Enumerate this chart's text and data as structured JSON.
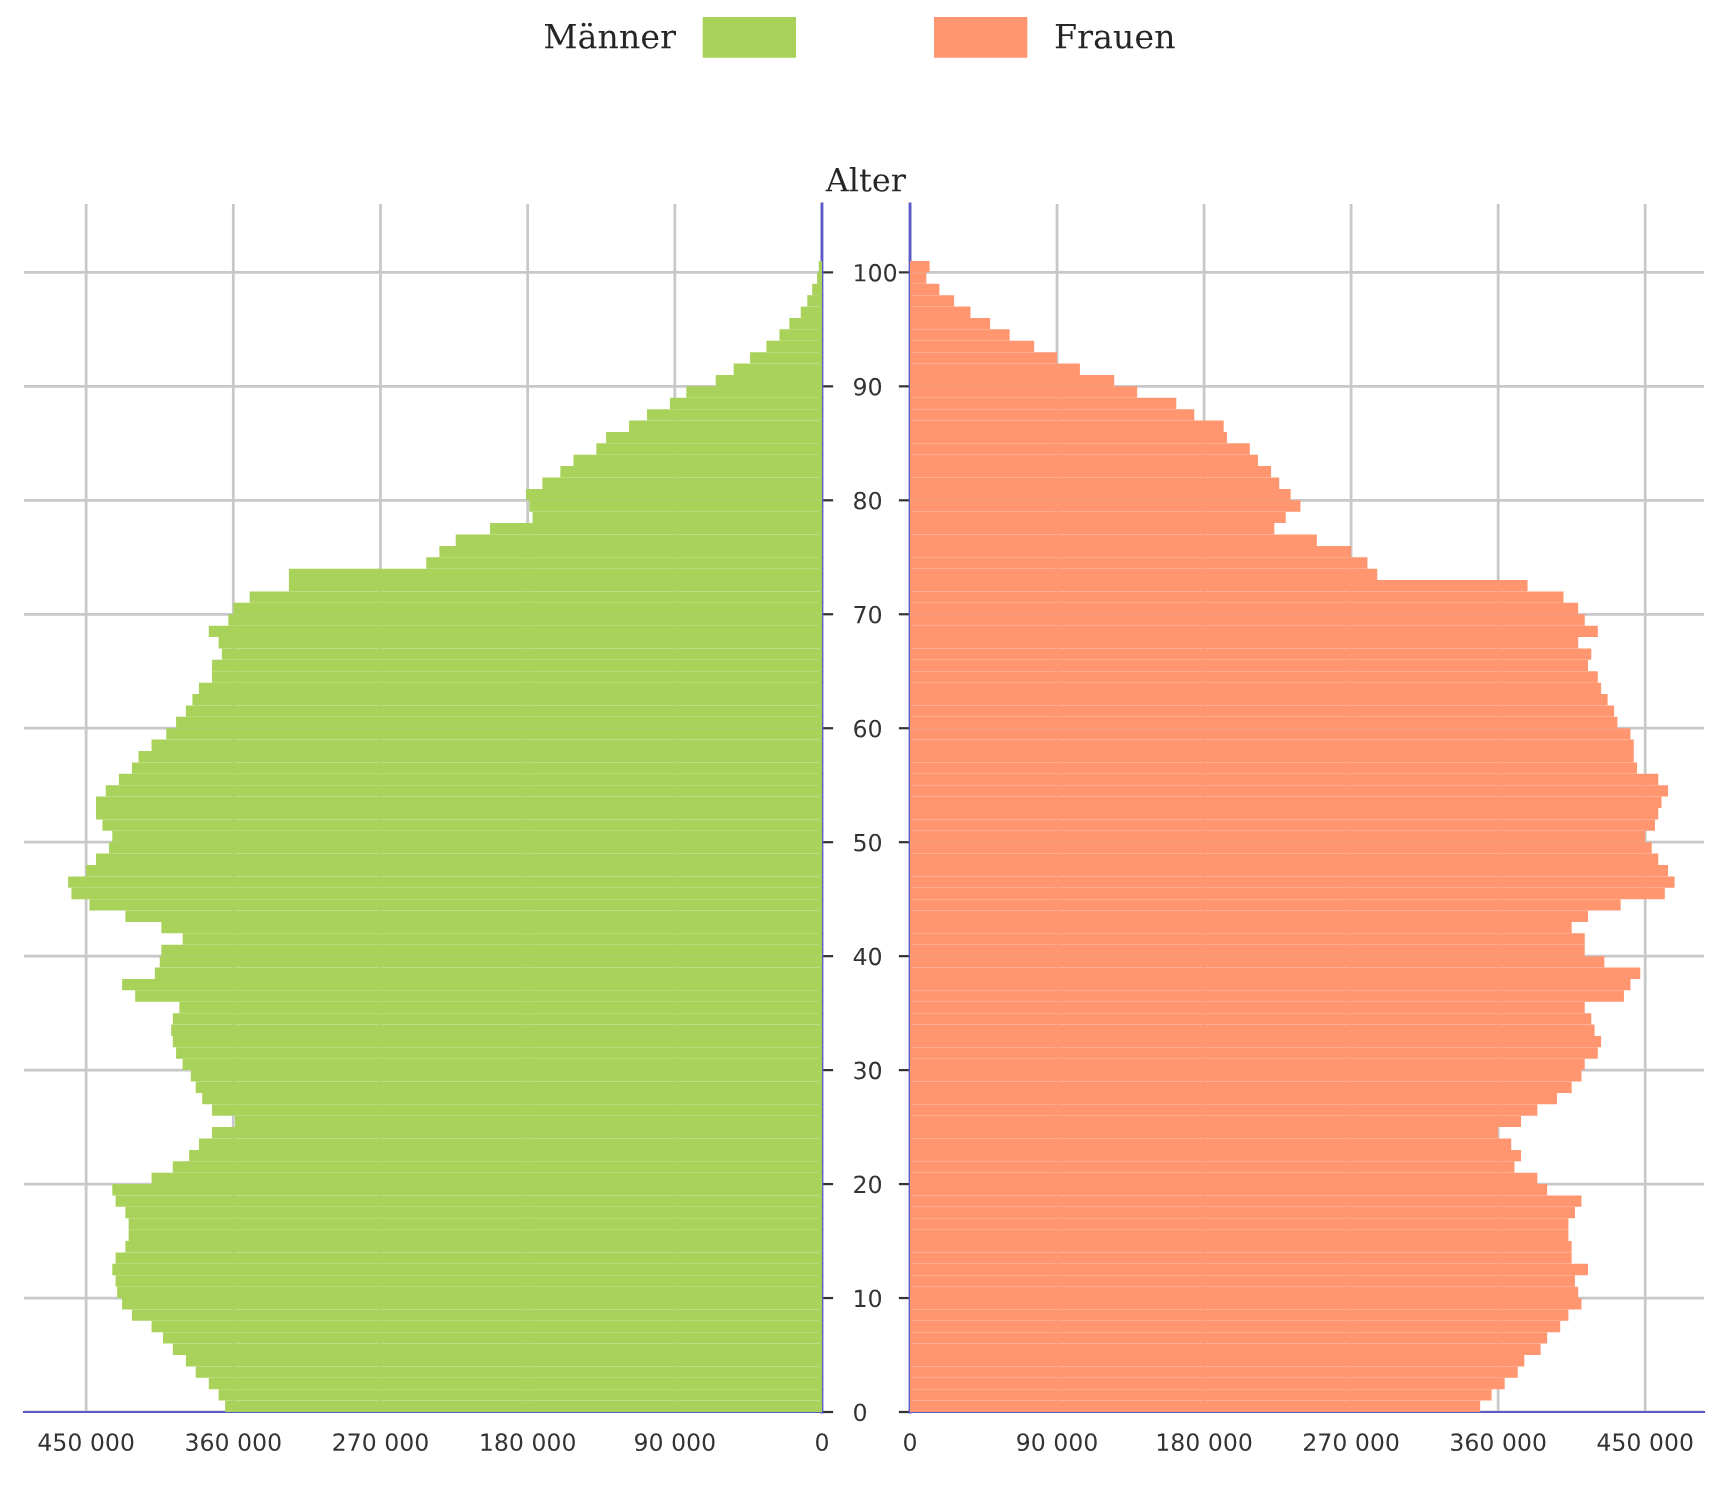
{
  "chart_data": [
    {
      "type": "bar",
      "orientation": "horizontal",
      "ylabel": "Alter",
      "legend": "top",
      "grid": true,
      "x": [
        0,
        1,
        2,
        3,
        4,
        5,
        6,
        7,
        8,
        9,
        10,
        11,
        12,
        13,
        14,
        15,
        16,
        17,
        18,
        19,
        20,
        21,
        22,
        23,
        24,
        25,
        26,
        27,
        28,
        29,
        30,
        31,
        32,
        33,
        34,
        35,
        36,
        37,
        38,
        39,
        40,
        41,
        42,
        43,
        44,
        45,
        46,
        47,
        48,
        49,
        50,
        51,
        52,
        53,
        54,
        55,
        56,
        57,
        58,
        59,
        60,
        61,
        62,
        63,
        64,
        65,
        66,
        67,
        68,
        69,
        70,
        71,
        72,
        73,
        74,
        75,
        76,
        77,
        78,
        79,
        80,
        81,
        82,
        83,
        84,
        85,
        86,
        87,
        88,
        89,
        90,
        91,
        92,
        93,
        94,
        95,
        96,
        97,
        98,
        99,
        100
      ],
      "series": [
        {
          "name": "Männer",
          "color": "#a8d25a",
          "values": [
            365000,
            369000,
            375000,
            383000,
            389000,
            397000,
            403000,
            410000,
            422000,
            428000,
            431000,
            432000,
            434000,
            432000,
            426000,
            424000,
            424000,
            426000,
            432000,
            434000,
            410000,
            397000,
            387000,
            381000,
            373000,
            359000,
            373000,
            379000,
            383000,
            386000,
            391000,
            395000,
            397000,
            398000,
            397000,
            393000,
            420000,
            428000,
            408000,
            405000,
            404000,
            391000,
            404000,
            426000,
            448000,
            459000,
            461000,
            450000,
            444000,
            436000,
            434000,
            440000,
            444000,
            444000,
            438000,
            430000,
            422000,
            418000,
            410000,
            401000,
            395000,
            389000,
            385000,
            381000,
            373000,
            373000,
            367000,
            369000,
            375000,
            363000,
            360000,
            350000,
            326000,
            326000,
            242000,
            234000,
            224000,
            203000,
            177000,
            179000,
            181000,
            171000,
            160000,
            152000,
            138000,
            132000,
            118000,
            107000,
            93000,
            83000,
            65000,
            54000,
            44000,
            34000,
            26000,
            20000,
            13000,
            9000,
            6000,
            3000,
            2000
          ]
        }
      ],
      "xlim": [
        488000,
        0
      ],
      "xticks": [
        {
          "value": 450000,
          "label": "450 000"
        },
        {
          "value": 360000,
          "label": "360 000"
        },
        {
          "value": 270000,
          "label": "270 000"
        },
        {
          "value": 180000,
          "label": "180 000"
        },
        {
          "value": 90000,
          "label": "90 000"
        },
        0
      ],
      "ylim": [
        0,
        106
      ],
      "yticks": [
        0,
        10,
        20,
        30,
        40,
        50,
        60,
        70,
        80,
        90,
        100
      ]
    },
    {
      "type": "bar",
      "orientation": "horizontal",
      "legend": "top",
      "grid": true,
      "tick_labels": "x",
      "x": [
        0,
        1,
        2,
        3,
        4,
        5,
        6,
        7,
        8,
        9,
        10,
        11,
        12,
        13,
        14,
        15,
        16,
        17,
        18,
        19,
        20,
        21,
        22,
        23,
        24,
        25,
        26,
        27,
        28,
        29,
        30,
        31,
        32,
        33,
        34,
        35,
        36,
        37,
        38,
        39,
        40,
        41,
        42,
        43,
        44,
        45,
        46,
        47,
        48,
        49,
        50,
        51,
        52,
        53,
        54,
        55,
        56,
        57,
        58,
        59,
        60,
        61,
        62,
        63,
        64,
        65,
        66,
        67,
        68,
        69,
        70,
        71,
        72,
        73,
        74,
        75,
        76,
        77,
        78,
        79,
        80,
        81,
        82,
        83,
        84,
        85,
        86,
        87,
        88,
        89,
        90,
        91,
        92,
        93,
        94,
        95,
        96,
        97,
        98,
        99,
        100
      ],
      "series": [
        {
          "name": "Frauen",
          "color": "#ff9670",
          "values": [
            349000,
            356000,
            364000,
            372000,
            376000,
            386000,
            390000,
            398000,
            403000,
            411000,
            409000,
            407000,
            415000,
            405000,
            405000,
            403000,
            403000,
            407000,
            411000,
            390000,
            384000,
            370000,
            374000,
            368000,
            360000,
            374000,
            384000,
            396000,
            405000,
            411000,
            413000,
            421000,
            423000,
            419000,
            417000,
            413000,
            437000,
            441000,
            447000,
            425000,
            413000,
            413000,
            405000,
            415000,
            435000,
            462000,
            468000,
            464000,
            458000,
            454000,
            450000,
            456000,
            458000,
            460000,
            464000,
            458000,
            445000,
            443000,
            443000,
            441000,
            433000,
            431000,
            427000,
            423000,
            421000,
            415000,
            417000,
            409000,
            421000,
            413000,
            409000,
            400000,
            378000,
            286000,
            280000,
            270000,
            249000,
            223000,
            230000,
            239000,
            233000,
            226000,
            221000,
            213000,
            208000,
            194000,
            192000,
            174000,
            163000,
            139000,
            125000,
            104000,
            90000,
            76000,
            61000,
            49000,
            37000,
            27000,
            18000,
            10000,
            12000
          ]
        }
      ],
      "xlim": [
        0,
        486000
      ],
      "xticks": [
        0,
        {
          "value": 90000,
          "label": "90 000"
        },
        {
          "value": 180000,
          "label": "180 000"
        },
        {
          "value": 270000,
          "label": "270 000"
        },
        {
          "value": 360000,
          "label": "360 000"
        },
        {
          "value": 450000,
          "label": "450 000"
        }
      ],
      "ylim": [
        0,
        106
      ],
      "yticks": [
        0,
        10,
        20,
        30,
        40,
        50,
        60,
        70,
        80,
        90,
        100
      ]
    }
  ]
}
